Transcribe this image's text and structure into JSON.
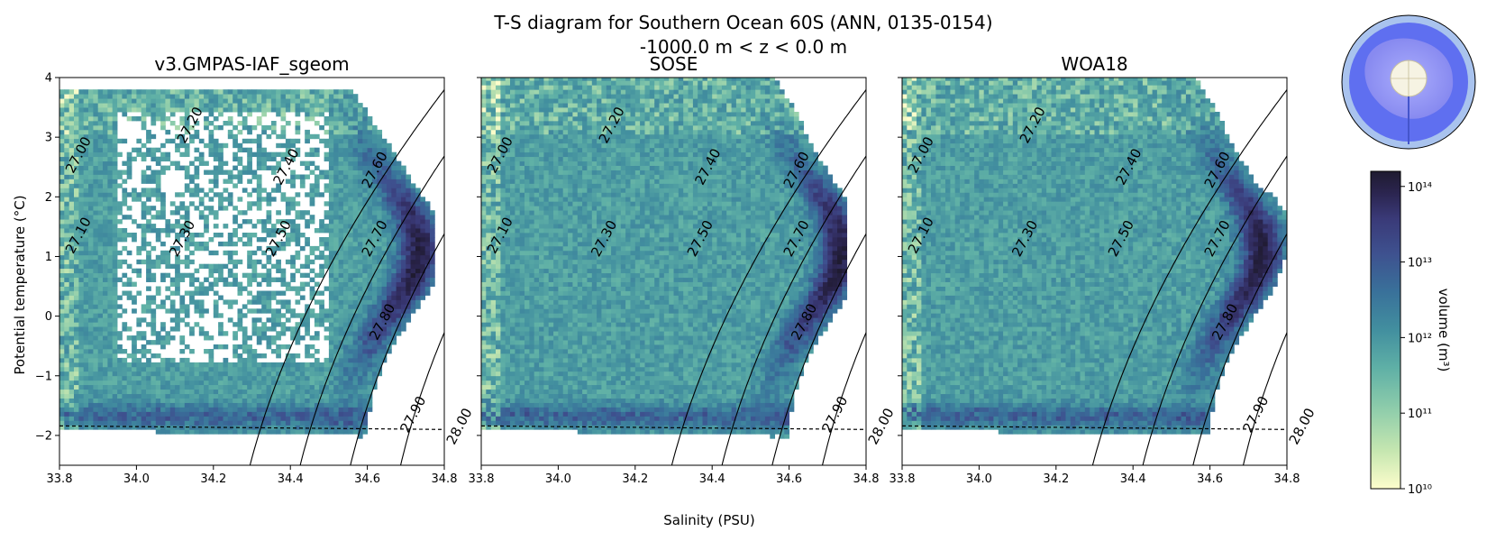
{
  "figure": {
    "title_line1": "T-S diagram for Southern Ocean 60S (ANN, 0135-0154)",
    "title_line2": "-1000.0 m < z < 0.0 m",
    "xlabel": "Salinity (PSU)",
    "ylabel": "Potential temperature (°C)",
    "colorbar_label": "volume (m³)",
    "colorbar_ticks": [
      "10¹⁰",
      "10¹¹",
      "10¹²",
      "10¹³",
      "10¹⁴"
    ],
    "colorbar_range_log10": [
      10,
      14.2
    ],
    "colormap": [
      "#fdfdcc",
      "#c5e6b0",
      "#8fcdab",
      "#5fb0a6",
      "#428f9f",
      "#39719a",
      "#3e518f",
      "#3a3a78",
      "#2b2550",
      "#1f1b30"
    ],
    "freezing_line_style": "dashed",
    "contour_color": "#000000"
  },
  "chart_data": [
    {
      "type": "heatmap",
      "title": "v3.GMPAS-IAF_sgeom",
      "xlabel": "",
      "ylabel": "Potential temperature (°C)",
      "xlim": [
        33.8,
        34.8
      ],
      "ylim": [
        -2.5,
        4
      ],
      "xticks": [
        "33.8",
        "34.0",
        "34.2",
        "34.4",
        "34.6",
        "34.8"
      ],
      "yticks": [
        "−2",
        "−1",
        "0",
        "1",
        "2",
        "3",
        "4"
      ],
      "density_contours": [
        "27.00",
        "27.10",
        "27.20",
        "27.30",
        "27.40",
        "27.50",
        "27.60",
        "27.70",
        "27.80",
        "27.90",
        "28.00"
      ],
      "freezing_line": {
        "s": [
          33.8,
          34.8
        ],
        "t": [
          -1.84,
          -1.9
        ]
      },
      "volume_log10_peak": 13.8
    },
    {
      "type": "heatmap",
      "title": "SOSE",
      "xlabel": "Salinity (PSU)",
      "ylabel": "",
      "xlim": [
        33.8,
        34.8
      ],
      "ylim": [
        -2.5,
        4
      ],
      "xticks": [
        "33.8",
        "34.0",
        "34.2",
        "34.4",
        "34.6",
        "34.8"
      ],
      "yticks": [],
      "density_contours": [
        "27.00",
        "27.10",
        "27.20",
        "27.30",
        "27.40",
        "27.50",
        "27.60",
        "27.70",
        "27.80",
        "27.90",
        "28.00"
      ],
      "freezing_line": {
        "s": [
          33.8,
          34.8
        ],
        "t": [
          -1.84,
          -1.9
        ]
      },
      "volume_log10_peak": 13.7
    },
    {
      "type": "heatmap",
      "title": "WOA18",
      "xlabel": "",
      "ylabel": "",
      "xlim": [
        33.8,
        34.8
      ],
      "ylim": [
        -2.5,
        4
      ],
      "xticks": [
        "33.8",
        "34.0",
        "34.2",
        "34.4",
        "34.6",
        "34.8"
      ],
      "yticks": [],
      "density_contours": [
        "27.00",
        "27.10",
        "27.20",
        "27.30",
        "27.40",
        "27.50",
        "27.60",
        "27.70",
        "27.80",
        "27.90",
        "28.00"
      ],
      "freezing_line": {
        "s": [
          33.8,
          34.8
        ],
        "t": [
          -1.84,
          -1.9
        ]
      },
      "volume_log10_peak": 13.9
    }
  ]
}
